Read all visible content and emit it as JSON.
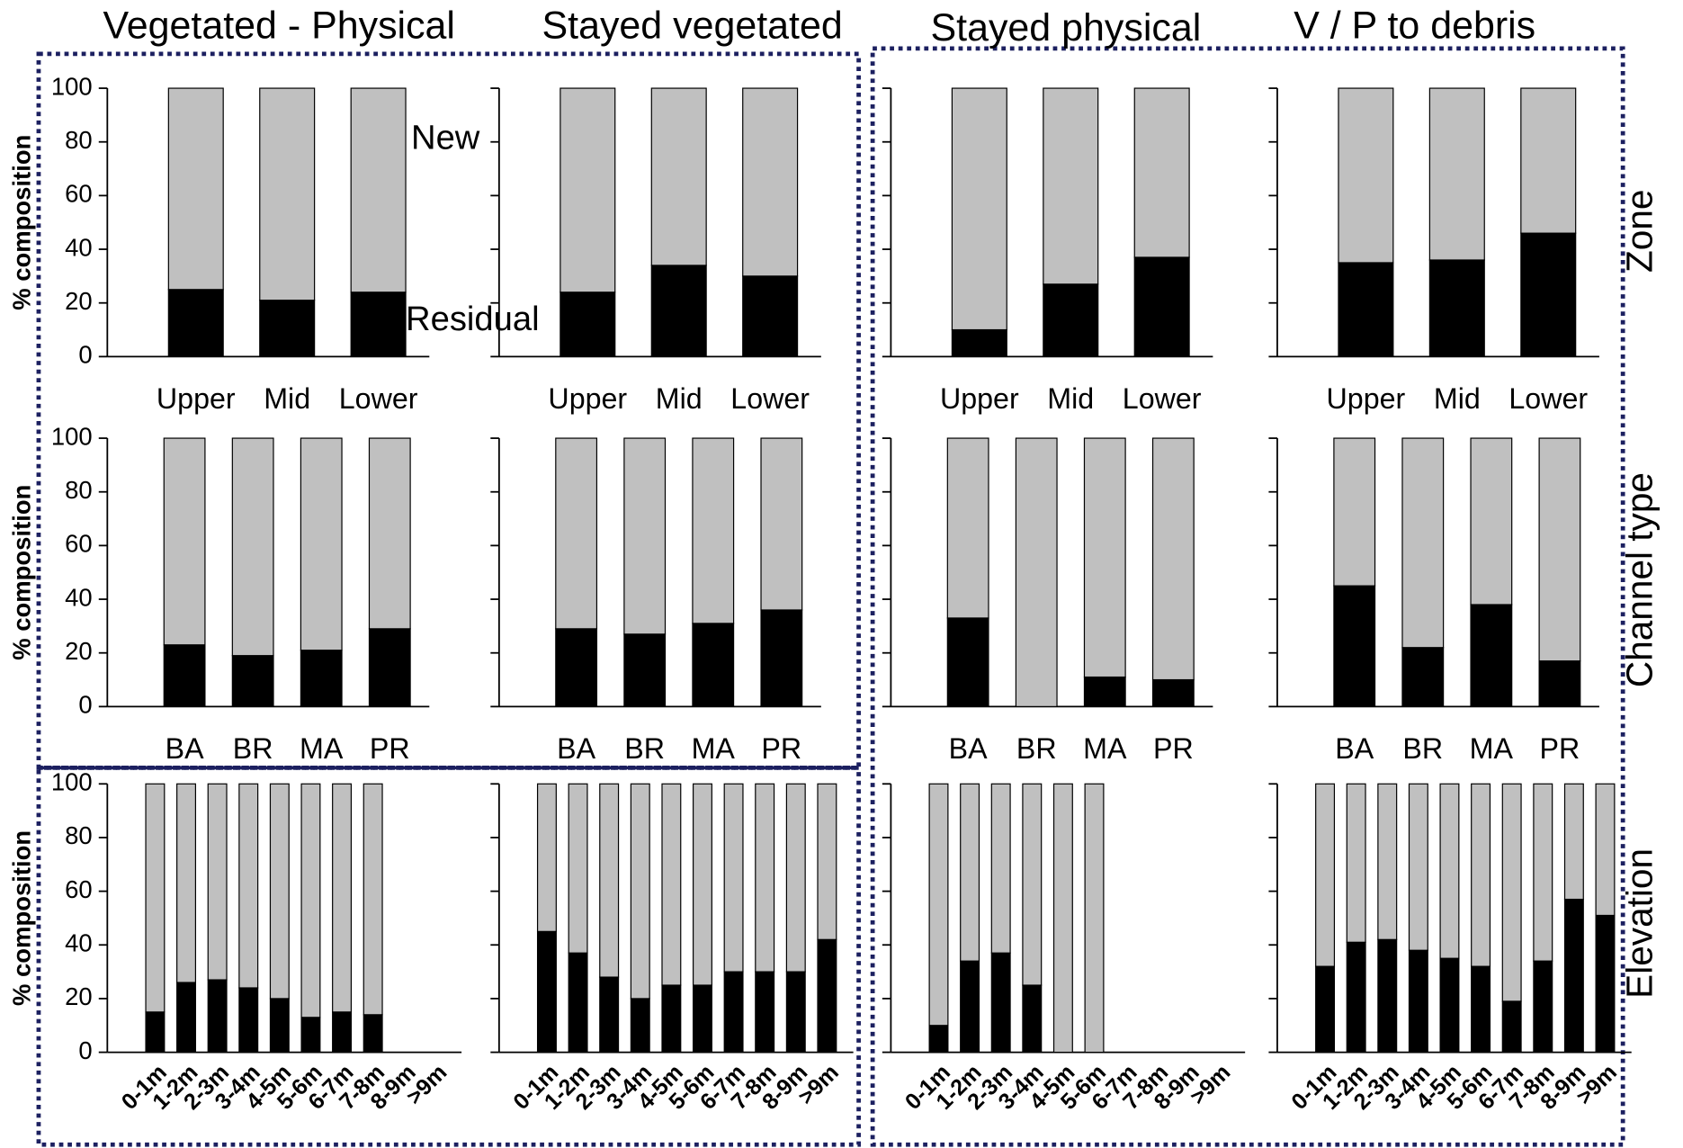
{
  "column_titles": [
    "Vegetated - Physical",
    "Stayed vegetated",
    "Stayed physical",
    "V / P to debris"
  ],
  "row_titles": [
    "Zone",
    "Channel type",
    "Elevation"
  ],
  "annotations": [
    "New",
    "Residual"
  ],
  "chart_data": [
    {
      "type": "bar",
      "stacked": true,
      "ylabel": "% composition",
      "ytick_labels": true,
      "categories": [
        "Upper",
        "Mid",
        "Lower"
      ],
      "series": [
        {
          "color": "#000000",
          "values": [
            25,
            21,
            24
          ]
        },
        {
          "color": "#c0c0c0",
          "values": [
            75,
            79,
            76
          ]
        }
      ],
      "ylim": [
        0,
        100
      ],
      "yticks": [
        0,
        20,
        40,
        60,
        80,
        100
      ]
    },
    {
      "type": "bar",
      "stacked": true,
      "ytick_labels": false,
      "categories": [
        "Upper",
        "Mid",
        "Lower"
      ],
      "series": [
        {
          "color": "#000000",
          "values": [
            24,
            34,
            30
          ]
        },
        {
          "color": "#c0c0c0",
          "values": [
            76,
            66,
            70
          ]
        }
      ],
      "ylim": [
        0,
        100
      ],
      "yticks": [
        0,
        20,
        40,
        60,
        80,
        100
      ]
    },
    {
      "type": "bar",
      "stacked": true,
      "ytick_labels": false,
      "categories": [
        "Upper",
        "Mid",
        "Lower"
      ],
      "series": [
        {
          "color": "#000000",
          "values": [
            10,
            27,
            37
          ]
        },
        {
          "color": "#c0c0c0",
          "values": [
            90,
            73,
            63
          ]
        }
      ],
      "ylim": [
        0,
        100
      ],
      "yticks": [
        0,
        20,
        40,
        60,
        80,
        100
      ]
    },
    {
      "type": "bar",
      "stacked": true,
      "ytick_labels": false,
      "categories": [
        "Upper",
        "Mid",
        "Lower"
      ],
      "series": [
        {
          "color": "#000000",
          "values": [
            35,
            36,
            46
          ]
        },
        {
          "color": "#c0c0c0",
          "values": [
            65,
            64,
            54
          ]
        }
      ],
      "ylim": [
        0,
        100
      ],
      "yticks": [
        0,
        20,
        40,
        60,
        80,
        100
      ]
    },
    {
      "type": "bar",
      "stacked": true,
      "ylabel": "% composition",
      "ytick_labels": true,
      "categories": [
        "BA",
        "BR",
        "MA",
        "PR"
      ],
      "series": [
        {
          "color": "#000000",
          "values": [
            23,
            19,
            21,
            29
          ]
        },
        {
          "color": "#c0c0c0",
          "values": [
            77,
            81,
            79,
            71
          ]
        }
      ],
      "ylim": [
        0,
        100
      ],
      "yticks": [
        0,
        20,
        40,
        60,
        80,
        100
      ]
    },
    {
      "type": "bar",
      "stacked": true,
      "ytick_labels": false,
      "categories": [
        "BA",
        "BR",
        "MA",
        "PR"
      ],
      "series": [
        {
          "color": "#000000",
          "values": [
            29,
            27,
            31,
            36
          ]
        },
        {
          "color": "#c0c0c0",
          "values": [
            71,
            73,
            69,
            64
          ]
        }
      ],
      "ylim": [
        0,
        100
      ],
      "yticks": [
        0,
        20,
        40,
        60,
        80,
        100
      ]
    },
    {
      "type": "bar",
      "stacked": true,
      "ytick_labels": false,
      "categories": [
        "BA",
        "BR",
        "MA",
        "PR"
      ],
      "series": [
        {
          "color": "#000000",
          "values": [
            33,
            0,
            11,
            10
          ]
        },
        {
          "color": "#c0c0c0",
          "values": [
            67,
            100,
            89,
            90
          ]
        }
      ],
      "ylim": [
        0,
        100
      ],
      "yticks": [
        0,
        20,
        40,
        60,
        80,
        100
      ]
    },
    {
      "type": "bar",
      "stacked": true,
      "ytick_labels": false,
      "categories": [
        "BA",
        "BR",
        "MA",
        "PR"
      ],
      "series": [
        {
          "color": "#000000",
          "values": [
            45,
            22,
            38,
            17
          ]
        },
        {
          "color": "#c0c0c0",
          "values": [
            55,
            78,
            62,
            83
          ]
        }
      ],
      "ylim": [
        0,
        100
      ],
      "yticks": [
        0,
        20,
        40,
        60,
        80,
        100
      ]
    },
    {
      "type": "bar",
      "stacked": true,
      "ylabel": "% composition",
      "ytick_labels": true,
      "xtick_rotation": -45,
      "categories": [
        "0-1m",
        "1-2m",
        "2-3m",
        "3-4m",
        "4-5m",
        "5-6m",
        "6-7m",
        "7-8m",
        "8-9m",
        ">9m"
      ],
      "series": [
        {
          "color": "#000000",
          "values": [
            15,
            26,
            27,
            24,
            20,
            13,
            15,
            14,
            null,
            null
          ]
        },
        {
          "color": "#c0c0c0",
          "values": [
            85,
            74,
            73,
            76,
            80,
            87,
            85,
            86,
            null,
            null
          ]
        }
      ],
      "ylim": [
        0,
        100
      ],
      "yticks": [
        0,
        20,
        40,
        60,
        80,
        100
      ]
    },
    {
      "type": "bar",
      "stacked": true,
      "ytick_labels": false,
      "xtick_rotation": -45,
      "categories": [
        "0-1m",
        "1-2m",
        "2-3m",
        "3-4m",
        "4-5m",
        "5-6m",
        "6-7m",
        "7-8m",
        "8-9m",
        ">9m"
      ],
      "series": [
        {
          "color": "#000000",
          "values": [
            45,
            37,
            28,
            20,
            25,
            25,
            30,
            30,
            30,
            42
          ]
        },
        {
          "color": "#c0c0c0",
          "values": [
            55,
            63,
            72,
            80,
            75,
            75,
            70,
            70,
            70,
            58
          ]
        }
      ],
      "ylim": [
        0,
        100
      ],
      "yticks": [
        0,
        20,
        40,
        60,
        80,
        100
      ]
    },
    {
      "type": "bar",
      "stacked": true,
      "ytick_labels": false,
      "xtick_rotation": -45,
      "categories": [
        "0-1m",
        "1-2m",
        "2-3m",
        "3-4m",
        "4-5m",
        "5-6m",
        "6-7m",
        "7-8m",
        "8-9m",
        ">9m"
      ],
      "series": [
        {
          "color": "#000000",
          "values": [
            10,
            34,
            37,
            25,
            0,
            0,
            null,
            null,
            null,
            null
          ]
        },
        {
          "color": "#c0c0c0",
          "values": [
            90,
            66,
            63,
            75,
            100,
            100,
            null,
            null,
            null,
            null
          ]
        }
      ],
      "ylim": [
        0,
        100
      ],
      "yticks": [
        0,
        20,
        40,
        60,
        80,
        100
      ]
    },
    {
      "type": "bar",
      "stacked": true,
      "ytick_labels": false,
      "xtick_rotation": -45,
      "categories": [
        "0-1m",
        "1-2m",
        "2-3m",
        "3-4m",
        "4-5m",
        "5-6m",
        "6-7m",
        "7-8m",
        "8-9m",
        ">9m"
      ],
      "series": [
        {
          "color": "#000000",
          "values": [
            32,
            41,
            42,
            38,
            35,
            32,
            19,
            34,
            57,
            51
          ]
        },
        {
          "color": "#c0c0c0",
          "values": [
            68,
            59,
            58,
            62,
            65,
            68,
            81,
            66,
            43,
            49
          ]
        }
      ],
      "ylim": [
        0,
        100
      ],
      "yticks": [
        0,
        20,
        40,
        60,
        80,
        100
      ]
    }
  ]
}
